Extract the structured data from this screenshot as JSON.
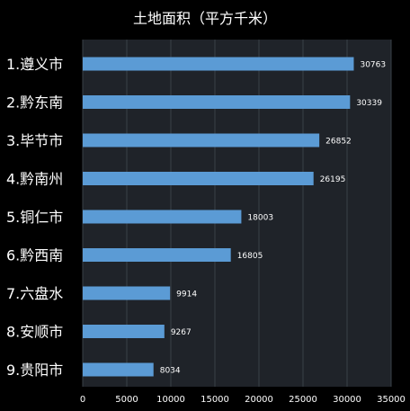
{
  "colors": {
    "background": "#000000",
    "plot_area": "#1f2329",
    "bar": "#5b9bd5",
    "text": "#ffffff",
    "gridline": "#3a4048"
  },
  "chart_data": {
    "type": "bar",
    "orientation": "horizontal",
    "title": "土地面积（平方千米）",
    "categories": [
      "1.遵义市",
      "2.黔东南",
      "3.毕节市",
      "4.黔南州",
      "5.铜仁市",
      "6.黔西南",
      "7.六盘水",
      "8.安顺市",
      "9.贵阳市"
    ],
    "values": [
      30763,
      30339,
      26852,
      26195,
      18003,
      16805,
      9914,
      9267,
      8034
    ],
    "data_labels": [
      "30763",
      "30339",
      "26852",
      "26195",
      "18003",
      "16805",
      "9914",
      "9267",
      "8034"
    ],
    "xlim": [
      0,
      35000
    ],
    "x_ticks": [
      0,
      5000,
      10000,
      15000,
      20000,
      25000,
      30000,
      35000
    ],
    "x_tick_labels": [
      "0",
      "5000",
      "10000",
      "15000",
      "20000",
      "25000",
      "30000",
      "35000"
    ],
    "xlabel": "",
    "ylabel": "",
    "grid": true,
    "legend": "none"
  }
}
